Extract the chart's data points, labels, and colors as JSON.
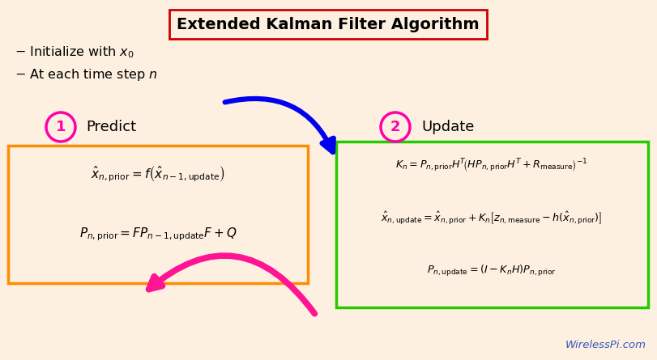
{
  "title": "Extended Kalman Filter Algorithm",
  "title_fontsize": 14,
  "background_color": "#fdf0e0",
  "title_box_color": "#cc0000",
  "label_color": "#ff00aa",
  "predict_box_color": "#ff8c00",
  "update_box_color": "#22cc00",
  "predict_eq1": "$\\hat{x}_{n,\\mathrm{prior}} = f\\left(\\hat{x}_{n-1,\\mathrm{update}}\\right)$",
  "predict_eq2": "$P_{n,\\mathrm{prior}} = FP_{n-1,\\mathrm{update}}F + Q$",
  "update_eq1": "$K_n = P_{n,\\mathrm{prior}}H^T\\!\\left(HP_{n,\\mathrm{prior}}H^T + R_{\\mathrm{measure}}\\right)^{-1}$",
  "update_eq2": "$\\hat{x}_{n,\\mathrm{update}} = \\hat{x}_{n,\\mathrm{prior}} + K_n\\left[z_{n,\\mathrm{measure}} - h(\\hat{x}_{n,\\mathrm{prior}})\\right]$",
  "update_eq3": "$P_{n,\\mathrm{update}} = (I - K_nH)P_{n,\\mathrm{prior}}$",
  "watermark": "WirelessPi.com",
  "watermark_color": "#3355bb",
  "blue_arrow_color": "#0000ee",
  "pink_arrow_color": "#ff1493"
}
